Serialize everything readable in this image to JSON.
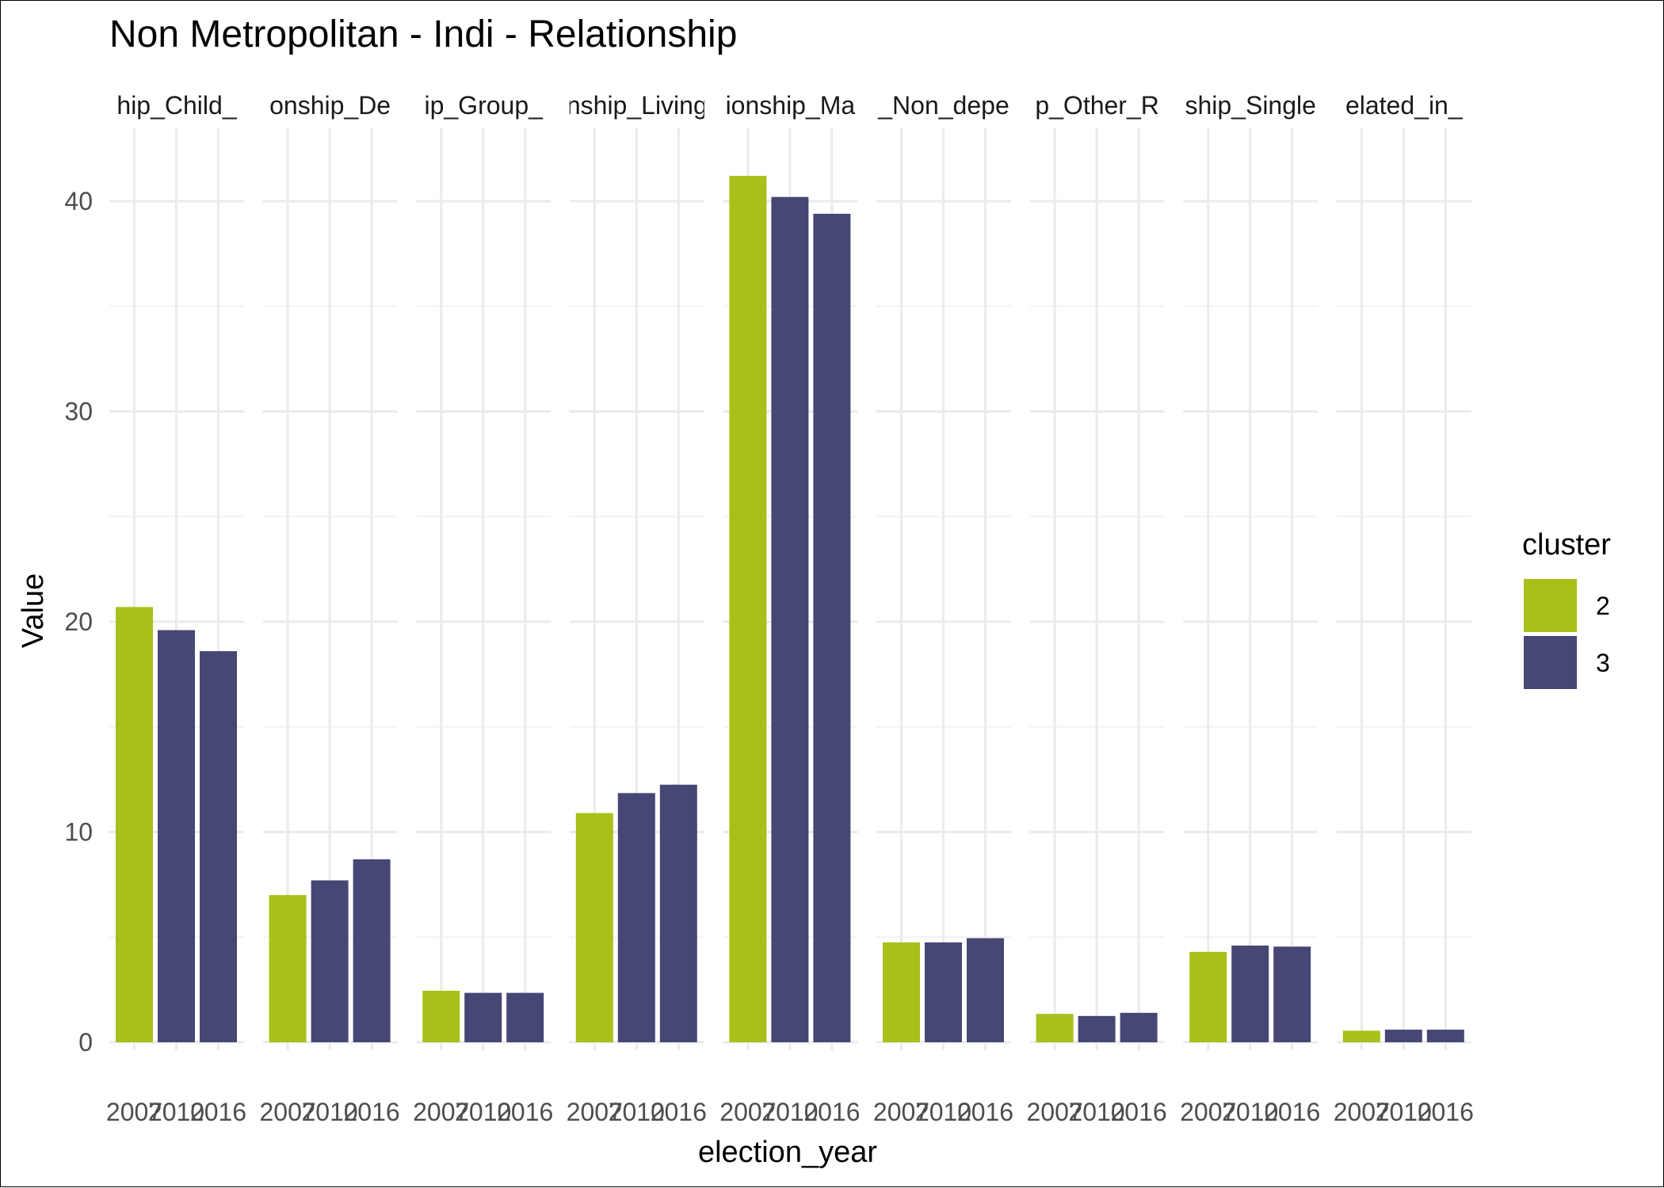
{
  "chart_data": {
    "type": "bar",
    "title": "Non Metropolitan - Indi - Relationship",
    "xlabel": "election_year",
    "ylabel": "Value",
    "ylim": [
      0,
      43
    ],
    "y_ticks": [
      "0",
      "10",
      "20",
      "30",
      "40"
    ],
    "grid": true,
    "legend": {
      "title": "cluster",
      "placement": "right",
      "entries": [
        "2",
        "3"
      ]
    },
    "years": [
      "2007",
      "2010",
      "2016"
    ],
    "cluster_colors": {
      "2": "#A8C019",
      "3": "#464775"
    },
    "facets": [
      {
        "label": "hip_Child_",
        "clusters": [
          "2",
          "3",
          "3"
        ],
        "values": [
          20.7,
          19.6,
          18.6
        ]
      },
      {
        "label": "onship_De",
        "clusters": [
          "2",
          "3",
          "3"
        ],
        "values": [
          7.0,
          7.7,
          8.7
        ]
      },
      {
        "label": "ip_Group_",
        "clusters": [
          "2",
          "3",
          "3"
        ],
        "values": [
          2.45,
          2.35,
          2.35
        ]
      },
      {
        "label": "nship_Living",
        "clusters": [
          "2",
          "3",
          "3"
        ],
        "values": [
          10.9,
          11.85,
          12.25
        ]
      },
      {
        "label": "ionship_Ma",
        "clusters": [
          "2",
          "3",
          "3"
        ],
        "values": [
          41.2,
          40.2,
          39.4
        ]
      },
      {
        "label": "_Non_depe",
        "clusters": [
          "2",
          "3",
          "3"
        ],
        "values": [
          4.75,
          4.75,
          4.95
        ]
      },
      {
        "label": "p_Other_R",
        "clusters": [
          "2",
          "3",
          "3"
        ],
        "values": [
          1.35,
          1.25,
          1.4
        ]
      },
      {
        "label": "ship_Single",
        "clusters": [
          "2",
          "3",
          "3"
        ],
        "values": [
          4.3,
          4.6,
          4.55
        ]
      },
      {
        "label": "elated_in_",
        "clusters": [
          "2",
          "3",
          "3"
        ],
        "values": [
          0.55,
          0.6,
          0.6
        ]
      }
    ]
  }
}
